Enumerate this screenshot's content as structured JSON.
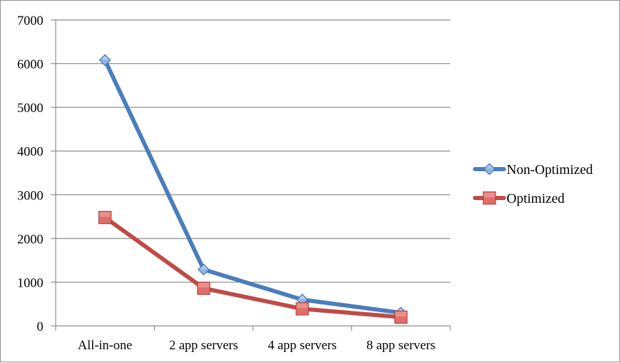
{
  "chart_data": {
    "type": "line",
    "title": "",
    "xlabel": "",
    "ylabel": "",
    "categories": [
      "All-in-one",
      "2 app servers",
      "4 app servers",
      "8 app servers"
    ],
    "ylim": [
      0,
      7000
    ],
    "yticks": [
      0,
      1000,
      2000,
      3000,
      4000,
      5000,
      6000,
      7000
    ],
    "grid": true,
    "legend": "right",
    "series": [
      {
        "name": "Non-Optimized",
        "values": [
          6080,
          1290,
          600,
          300
        ],
        "color": "#4a7ebb",
        "marker": "diamond"
      },
      {
        "name": "Optimized",
        "values": [
          2480,
          860,
          390,
          200
        ],
        "color": "#be4b48",
        "marker": "square"
      }
    ]
  }
}
